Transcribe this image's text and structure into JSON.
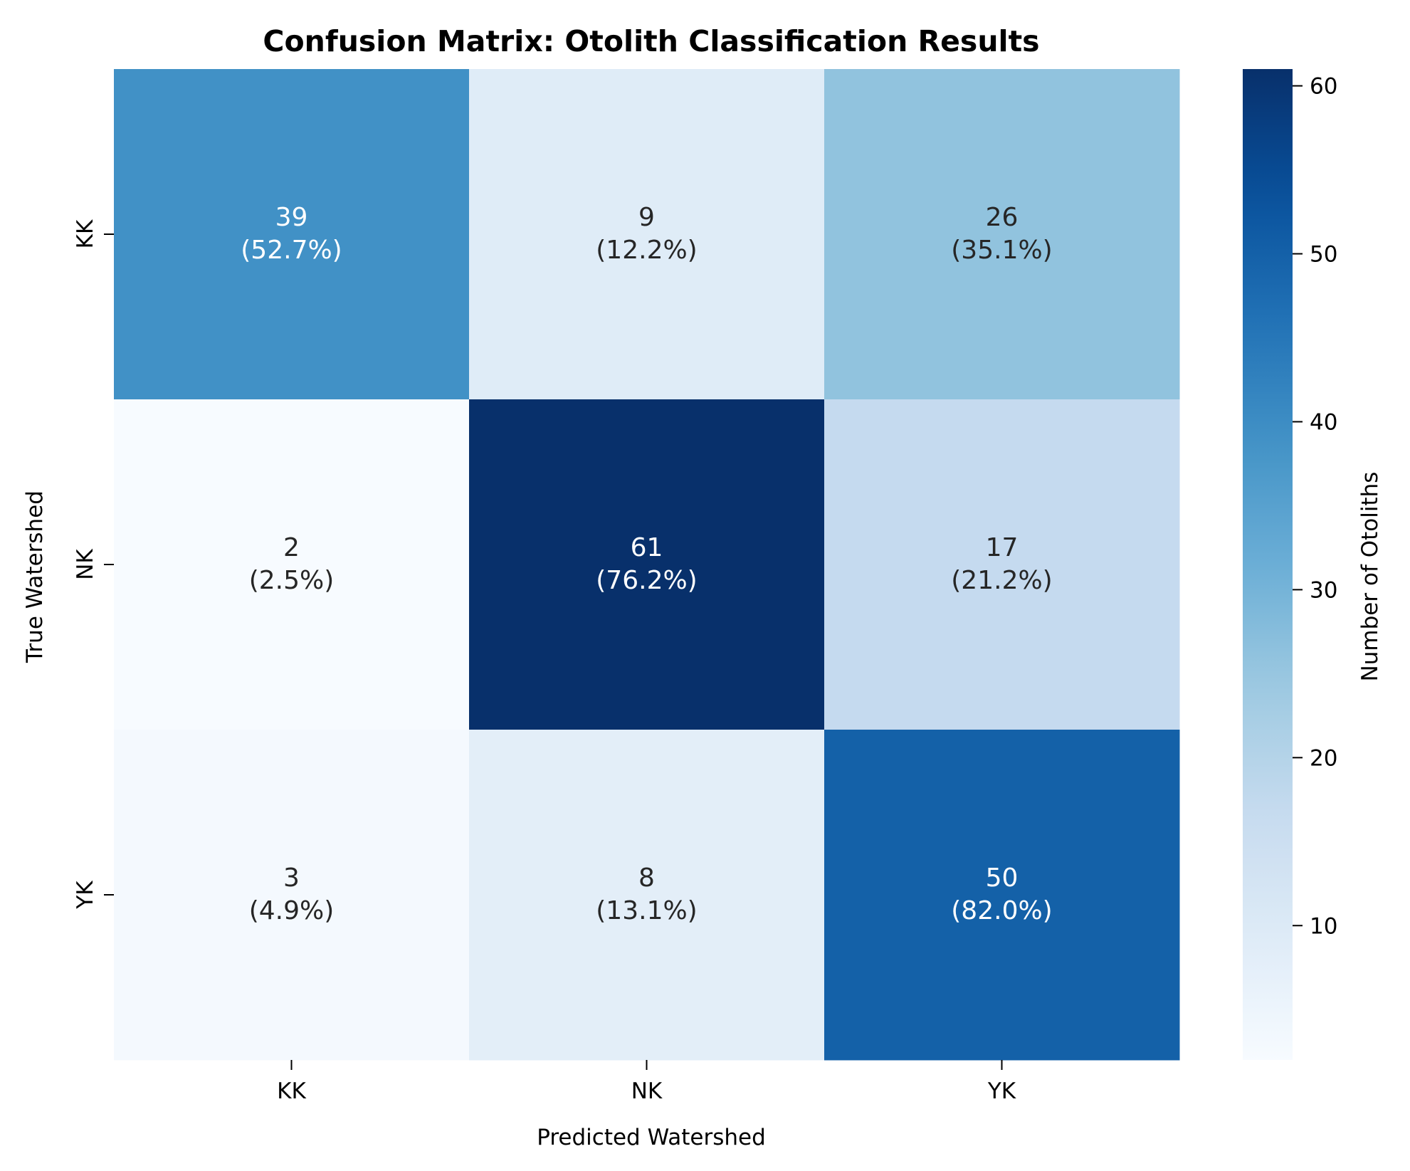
{
  "chart_data": {
    "type": "heatmap",
    "title": "Confusion Matrix: Otolith Classification Results",
    "xlabel": "Predicted Watershed",
    "ylabel": "True Watershed",
    "x_categories": [
      "KK",
      "NK",
      "YK"
    ],
    "y_categories": [
      "KK",
      "NK",
      "YK"
    ],
    "values": [
      [
        39,
        9,
        26
      ],
      [
        2,
        61,
        17
      ],
      [
        3,
        8,
        50
      ]
    ],
    "percent_labels": [
      [
        "(52.7%)",
        "(12.2%)",
        "(35.1%)"
      ],
      [
        "(2.5%)",
        "(76.2%)",
        "(21.2%)"
      ],
      [
        "(4.9%)",
        "(13.1%)",
        "(82.0%)"
      ]
    ],
    "colorscale": "Blues",
    "vmin": 2,
    "vmax": 61,
    "colorbar": {
      "label": "Number of Otoliths",
      "ticks": [
        10,
        20,
        30,
        40,
        50,
        60
      ]
    }
  }
}
